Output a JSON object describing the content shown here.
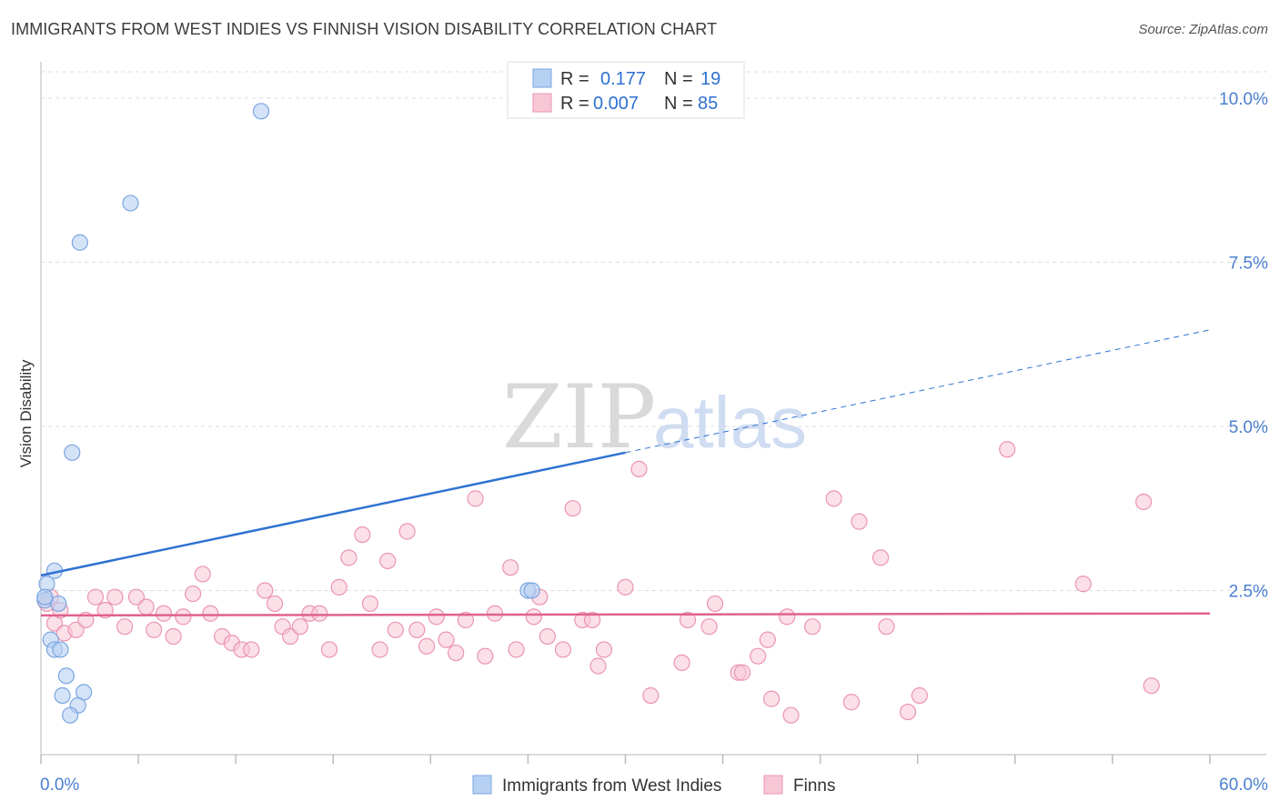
{
  "title": "IMMIGRANTS FROM WEST INDIES VS FINNISH VISION DISABILITY CORRELATION CHART",
  "source": "Source: ZipAtlas.com",
  "watermark": {
    "zip": "ZIP",
    "atlas": "atlas"
  },
  "colors": {
    "blue_fill": "#b7d1f3",
    "blue_stroke": "#7aa5e0",
    "blue_line": "#2e72d2",
    "pink_fill": "#f7c7d6",
    "pink_stroke": "#eb94b0",
    "pink_line": "#e0628d",
    "tick_text": "#4a7fd0",
    "grid": "#dddddd"
  },
  "legend": {
    "rows": [
      {
        "r_label": "R =",
        "r_value": "0.177",
        "n_label": "N =",
        "n_value": "19"
      },
      {
        "r_label": "R =",
        "r_value": "0.007",
        "n_label": "N =",
        "n_value": "85"
      }
    ]
  },
  "chart_data": {
    "type": "scatter",
    "xlabel": "",
    "ylabel": "Vision Disability",
    "xlim": [
      0,
      60
    ],
    "ylim": [
      0,
      10.4
    ],
    "x_tick_labels": [
      "0.0%",
      "60.0%"
    ],
    "y_ticks": [
      2.5,
      5.0,
      7.5,
      10.0
    ],
    "y_tick_labels": [
      "2.5%",
      "5.0%",
      "7.5%",
      "10.0%"
    ],
    "grid": "horizontal-dashed",
    "series": [
      {
        "name": "Immigrants from West Indies",
        "color": "blue",
        "R": 0.177,
        "N": 19,
        "trend": {
          "x0": 0,
          "y0": 2.73,
          "x1": 30,
          "y1": 4.6,
          "dashed_to_x": 60,
          "dashed_to_y": 6.47
        },
        "points": [
          [
            11.3,
            9.8
          ],
          [
            4.6,
            8.4
          ],
          [
            2.0,
            7.8
          ],
          [
            1.6,
            4.6
          ],
          [
            0.7,
            2.8
          ],
          [
            0.3,
            2.6
          ],
          [
            0.2,
            2.35
          ],
          [
            0.9,
            2.3
          ],
          [
            0.2,
            2.4
          ],
          [
            0.5,
            1.75
          ],
          [
            0.7,
            1.6
          ],
          [
            1.0,
            1.6
          ],
          [
            1.3,
            1.2
          ],
          [
            2.2,
            0.95
          ],
          [
            1.1,
            0.9
          ],
          [
            1.9,
            0.75
          ],
          [
            1.5,
            0.6
          ],
          [
            25.0,
            2.5
          ],
          [
            25.2,
            2.5
          ]
        ]
      },
      {
        "name": "Finns",
        "color": "pink",
        "R": 0.007,
        "N": 85,
        "trend": {
          "x0": 0,
          "y0": 2.12,
          "x1": 60,
          "y1": 2.15
        },
        "points": [
          [
            0.3,
            2.3
          ],
          [
            0.5,
            2.4
          ],
          [
            0.7,
            2.0
          ],
          [
            1.0,
            2.2
          ],
          [
            1.2,
            1.85
          ],
          [
            1.8,
            1.9
          ],
          [
            2.3,
            2.05
          ],
          [
            2.8,
            2.4
          ],
          [
            3.3,
            2.2
          ],
          [
            3.8,
            2.4
          ],
          [
            4.3,
            1.95
          ],
          [
            4.9,
            2.4
          ],
          [
            5.4,
            2.25
          ],
          [
            5.8,
            1.9
          ],
          [
            6.3,
            2.15
          ],
          [
            6.8,
            1.8
          ],
          [
            7.3,
            2.1
          ],
          [
            7.8,
            2.45
          ],
          [
            8.3,
            2.75
          ],
          [
            8.7,
            2.15
          ],
          [
            9.3,
            1.8
          ],
          [
            9.8,
            1.7
          ],
          [
            10.3,
            1.6
          ],
          [
            10.8,
            1.6
          ],
          [
            11.5,
            2.5
          ],
          [
            12.0,
            2.3
          ],
          [
            12.4,
            1.95
          ],
          [
            12.8,
            1.8
          ],
          [
            13.3,
            1.95
          ],
          [
            13.8,
            2.15
          ],
          [
            14.3,
            2.15
          ],
          [
            14.8,
            1.6
          ],
          [
            15.3,
            2.55
          ],
          [
            15.8,
            3.0
          ],
          [
            16.5,
            3.35
          ],
          [
            16.9,
            2.3
          ],
          [
            17.4,
            1.6
          ],
          [
            17.8,
            2.95
          ],
          [
            18.2,
            1.9
          ],
          [
            18.8,
            3.4
          ],
          [
            19.3,
            1.9
          ],
          [
            19.8,
            1.65
          ],
          [
            20.3,
            2.1
          ],
          [
            20.8,
            1.75
          ],
          [
            21.3,
            1.55
          ],
          [
            21.8,
            2.05
          ],
          [
            22.3,
            3.9
          ],
          [
            22.8,
            1.5
          ],
          [
            23.3,
            2.15
          ],
          [
            24.1,
            2.85
          ],
          [
            24.4,
            1.6
          ],
          [
            25.3,
            2.1
          ],
          [
            25.6,
            2.4
          ],
          [
            26.0,
            1.8
          ],
          [
            26.8,
            1.6
          ],
          [
            27.3,
            3.75
          ],
          [
            27.8,
            2.05
          ],
          [
            28.3,
            2.05
          ],
          [
            28.6,
            1.35
          ],
          [
            28.9,
            1.6
          ],
          [
            30.0,
            2.55
          ],
          [
            30.7,
            4.35
          ],
          [
            31.3,
            0.9
          ],
          [
            32.9,
            1.4
          ],
          [
            33.2,
            2.05
          ],
          [
            34.3,
            1.95
          ],
          [
            34.6,
            2.3
          ],
          [
            35.8,
            1.25
          ],
          [
            36.0,
            1.25
          ],
          [
            36.8,
            1.5
          ],
          [
            37.3,
            1.75
          ],
          [
            37.5,
            0.85
          ],
          [
            38.3,
            2.1
          ],
          [
            38.5,
            0.6
          ],
          [
            39.6,
            1.95
          ],
          [
            40.7,
            3.9
          ],
          [
            41.6,
            0.8
          ],
          [
            42.0,
            3.55
          ],
          [
            43.1,
            3.0
          ],
          [
            43.4,
            1.95
          ],
          [
            44.5,
            0.65
          ],
          [
            45.1,
            0.9
          ],
          [
            49.6,
            4.65
          ],
          [
            53.5,
            2.6
          ],
          [
            56.6,
            3.85
          ],
          [
            57.0,
            1.05
          ]
        ]
      }
    ]
  }
}
